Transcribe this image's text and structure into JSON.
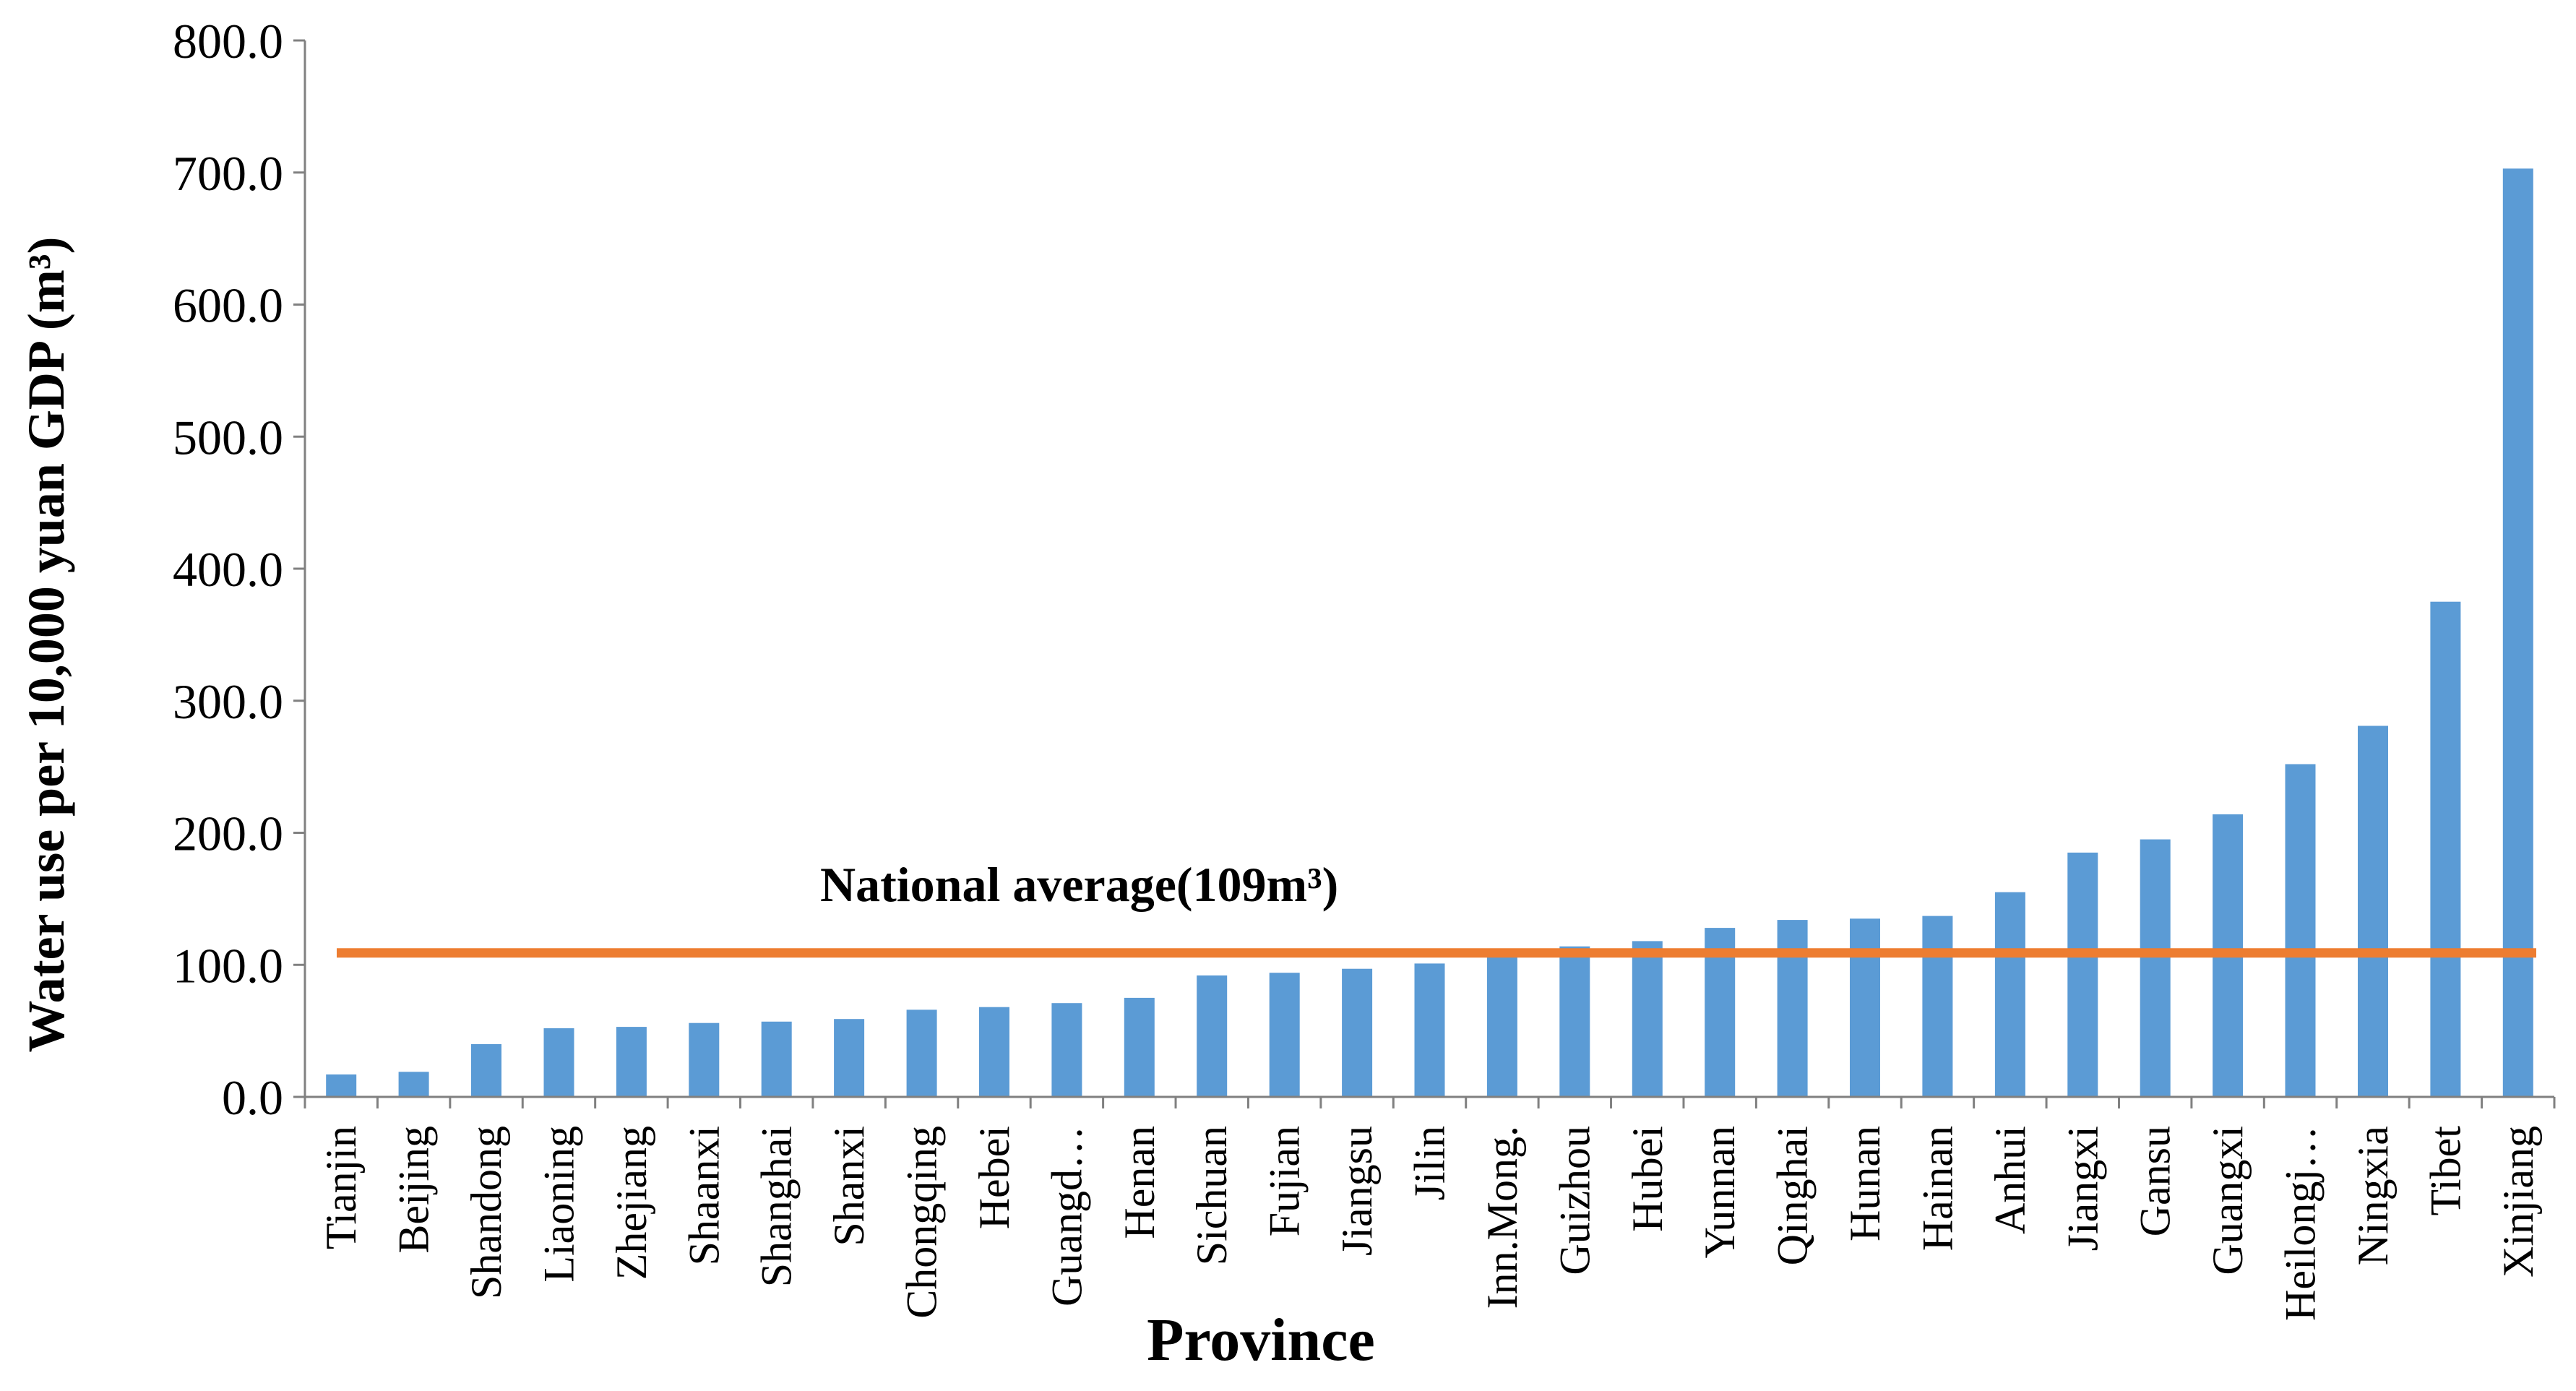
{
  "chart_data": {
    "type": "bar",
    "xlabel": "Province",
    "ylabel": "Water use  per 10,000 yuan GDP (m³)",
    "ylim": [
      0,
      800
    ],
    "yticks": [
      0,
      100,
      200,
      300,
      400,
      500,
      600,
      700,
      800
    ],
    "ytick_labels": [
      "0.0",
      "100.0",
      "200.0",
      "300.0",
      "400.0",
      "500.0",
      "600.0",
      "700.0",
      "800.0"
    ],
    "grid": false,
    "legend": "none",
    "bar_color": "#5b9bd5",
    "reference_line": {
      "label": "National average(109m³)",
      "value": 109,
      "color": "#ed7d31"
    },
    "categories": [
      "Tianjin",
      "Beijing",
      "Shandong",
      "Liaoning",
      "Zhejiang",
      "Shaanxi",
      "Shanghai",
      "Shanxi",
      "Chongqing",
      "Hebei",
      "Guangd…",
      "Henan",
      "Sichuan",
      "Fujian",
      "Jiangsu",
      "Jilin",
      "Inn.Mong.",
      "Guizhou",
      "Hubei",
      "Yunnan",
      "Qinghai",
      "Hunan",
      "Hainan",
      "Anhui",
      "Jiangxi",
      "Gansu",
      "Guangxi",
      "Heilongj…",
      "Ningxia",
      "Tibet",
      "Xinjiang"
    ],
    "values": [
      17,
      19,
      40,
      52,
      53,
      56,
      57,
      59,
      66,
      68,
      71,
      75,
      92,
      94,
      97,
      101,
      110,
      114,
      118,
      128,
      134,
      135,
      137,
      155,
      185,
      195,
      214,
      252,
      281,
      375,
      703
    ]
  }
}
